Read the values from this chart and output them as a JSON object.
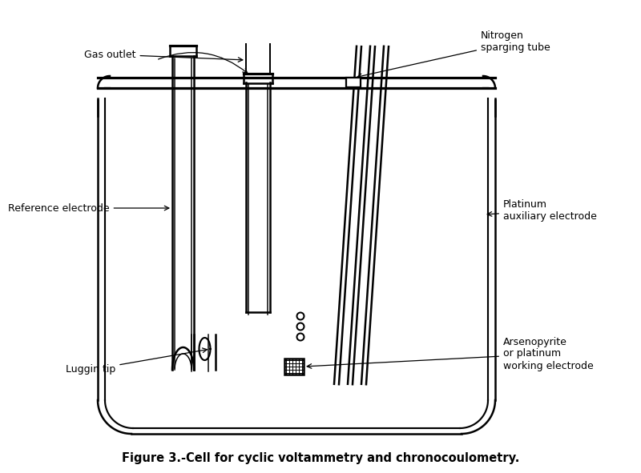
{
  "title": "Figure 3.-Cell for cyclic voltammetry and chronocoulometry.",
  "title_fontsize": 10.5,
  "bg_color": "#ffffff",
  "line_color": "#000000",
  "labels": {
    "gas_outlet": "Gas outlet",
    "nitrogen": "Nitrogen\nsparging tube",
    "reference": "Reference electrode",
    "platinum_aux": "Platinum\nauxiliary electrode",
    "luggin": "Luggin tip",
    "arsenopyrite": "Arsenopyrite\nor platinum\nworking electrode"
  },
  "label_fontsize": 9,
  "figsize": [
    8.0,
    5.91
  ],
  "dpi": 100
}
